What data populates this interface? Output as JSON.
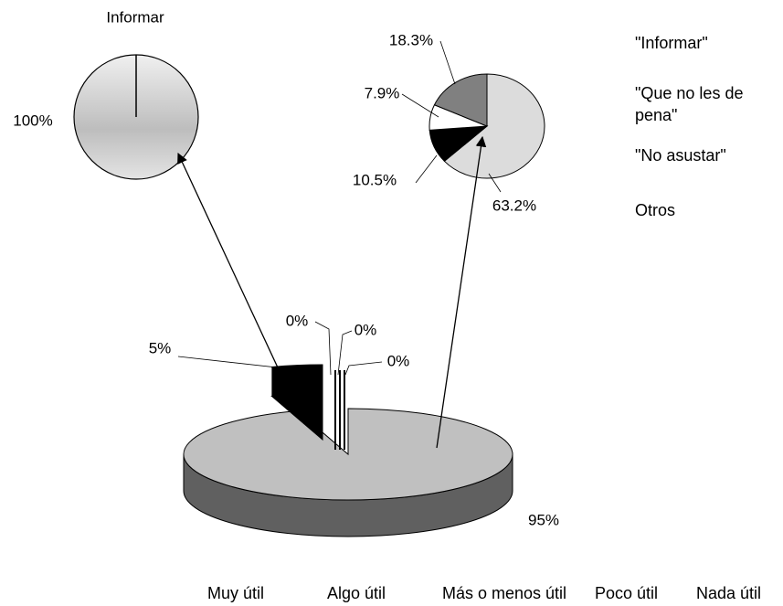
{
  "chart_data": [
    {
      "type": "pie3d",
      "categories": [
        "Muy útil",
        "Algo útil",
        "Más o menos útil",
        "Poco útil",
        "Nada útil"
      ],
      "values": [
        95,
        5,
        0,
        0,
        0
      ],
      "value_labels": [
        "95%",
        "5%",
        "0%",
        "0%",
        "0%"
      ],
      "colors": [
        "#c0c0c0",
        "#000000",
        "#808080",
        "#ffffff",
        "#a0a0a0"
      ]
    },
    {
      "type": "pie",
      "title": "Informar",
      "values": [
        100
      ],
      "value_labels": [
        "100%"
      ],
      "colors": [
        "#d0d0d0"
      ]
    },
    {
      "type": "pie",
      "categories": [
        "\"Informar\"",
        "\"Que no les de pena\"",
        "\"No asustar\"",
        "Otros"
      ],
      "values": [
        63.2,
        10.5,
        7.9,
        18.3
      ],
      "value_labels": [
        "63.2%",
        "10.5%",
        "7.9%",
        "18.3%"
      ],
      "colors": [
        "#dcdcdc",
        "#000000",
        "#ffffff",
        "#808080"
      ]
    }
  ]
}
